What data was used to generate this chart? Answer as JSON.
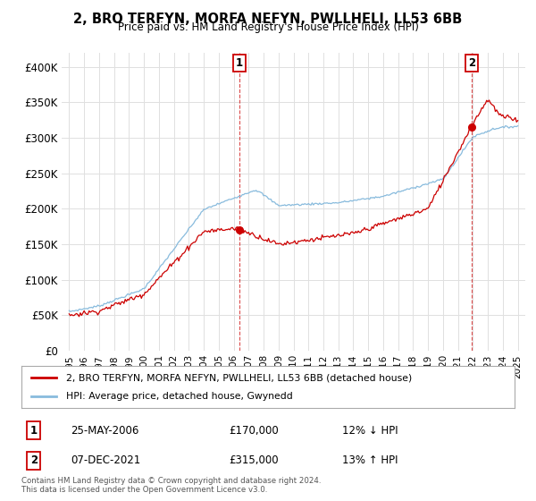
{
  "title": "2, BRO TERFYN, MORFA NEFYN, PWLLHELI, LL53 6BB",
  "subtitle": "Price paid vs. HM Land Registry's House Price Index (HPI)",
  "legend_property": "2, BRO TERFYN, MORFA NEFYN, PWLLHELI, LL53 6BB (detached house)",
  "legend_hpi": "HPI: Average price, detached house, Gwynedd",
  "sale1_label": "1",
  "sale1_date": "25-MAY-2006",
  "sale1_price": "£170,000",
  "sale1_hpi": "12% ↓ HPI",
  "sale2_label": "2",
  "sale2_date": "07-DEC-2021",
  "sale2_price": "£315,000",
  "sale2_hpi": "13% ↑ HPI",
  "footer1": "Contains HM Land Registry data © Crown copyright and database right 2024.",
  "footer2": "This data is licensed under the Open Government Licence v3.0.",
  "property_color": "#cc0000",
  "hpi_color": "#88bbdd",
  "sale1_x": 2006.38,
  "sale1_y": 170000,
  "sale2_x": 2021.92,
  "sale2_y": 315000,
  "ylim": [
    0,
    420000
  ],
  "xlim": [
    1994.5,
    2025.5
  ],
  "yticks": [
    0,
    50000,
    100000,
    150000,
    200000,
    250000,
    300000,
    350000,
    400000
  ],
  "ytick_labels": [
    "£0",
    "£50K",
    "£100K",
    "£150K",
    "£200K",
    "£250K",
    "£300K",
    "£350K",
    "£400K"
  ],
  "xticks": [
    1995,
    1996,
    1997,
    1998,
    1999,
    2000,
    2001,
    2002,
    2003,
    2004,
    2005,
    2006,
    2007,
    2008,
    2009,
    2010,
    2011,
    2012,
    2013,
    2014,
    2015,
    2016,
    2017,
    2018,
    2019,
    2020,
    2021,
    2022,
    2023,
    2024,
    2025
  ],
  "background_color": "#ffffff",
  "grid_color": "#e0e0e0"
}
